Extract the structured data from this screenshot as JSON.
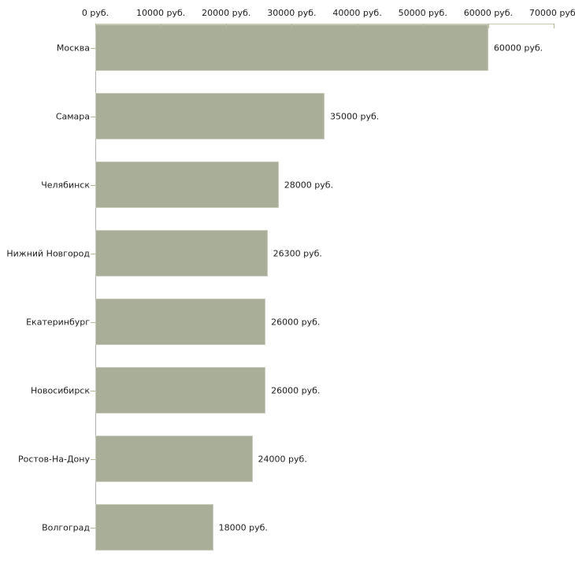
{
  "chart_data": {
    "type": "bar",
    "orientation": "horizontal",
    "title": "",
    "xlabel": "",
    "ylabel": "",
    "xlim": [
      0,
      70000
    ],
    "grid": false,
    "legend": null,
    "x_ticks": [
      0,
      10000,
      20000,
      30000,
      40000,
      50000,
      60000,
      70000
    ],
    "x_tick_labels": [
      "0 руб.",
      "10000 руб.",
      "20000 руб.",
      "30000 руб.",
      "40000 руб.",
      "50000 руб.",
      "60000 руб.",
      "70000 руб."
    ],
    "categories": [
      "Москва",
      "Самара",
      "Челябинск",
      "Нижний Новгород",
      "Екатеринбург",
      "Новосибирск",
      "Ростов-На-Дону",
      "Волгоград"
    ],
    "values": [
      60000,
      35000,
      28000,
      26300,
      26000,
      26000,
      24000,
      18000
    ],
    "value_labels": [
      "60000 руб.",
      "35000 руб.",
      "28000 руб.",
      "26300 руб.",
      "26000 руб.",
      "26000 руб.",
      "24000 руб.",
      "18000 руб."
    ],
    "colors": {
      "bar_fill": "#a9ae98",
      "bar_border": "#c9ccbd",
      "x_axis_line": "#c9cbae",
      "x_tick": "#b5b694",
      "y_axis_line": "#b3b3b3",
      "label_text": "#1c1c1c"
    }
  }
}
